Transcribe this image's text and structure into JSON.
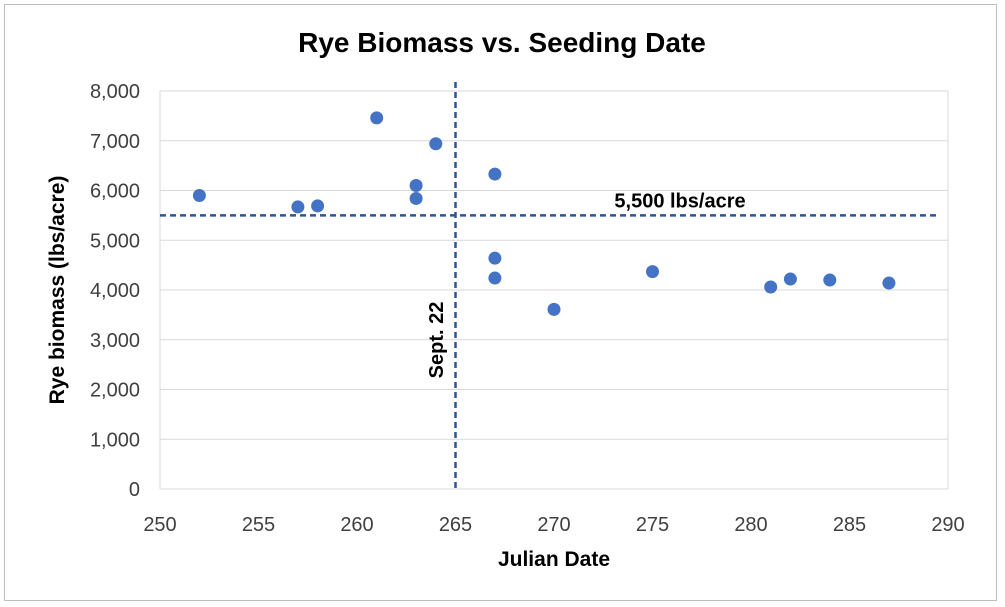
{
  "chart_data": {
    "type": "scatter",
    "title": "Rye Biomass vs. Seeding Date",
    "xlabel": "Julian Date",
    "ylabel": "Rye biomass (lbs/acre)",
    "xlim": [
      250,
      290
    ],
    "ylim": [
      0,
      8000
    ],
    "x_ticks": [
      250,
      255,
      260,
      265,
      270,
      275,
      280,
      285,
      290
    ],
    "x_tick_labels": [
      "250",
      "255",
      "260",
      "265",
      "270",
      "275",
      "280",
      "285",
      "290"
    ],
    "y_ticks": [
      0,
      1000,
      2000,
      3000,
      4000,
      5000,
      6000,
      7000,
      8000
    ],
    "y_tick_labels": [
      "0",
      "1,000",
      "2,000",
      "3,000",
      "4,000",
      "5,000",
      "6,000",
      "7,000",
      "8,000"
    ],
    "grid": "horizontal",
    "legend": "none",
    "marker_color": "#4472C4",
    "reference_line_color": "#2F5597",
    "series": [
      {
        "points": [
          {
            "x": 252,
            "y": 5900
          },
          {
            "x": 257,
            "y": 5670
          },
          {
            "x": 258,
            "y": 5690
          },
          {
            "x": 261,
            "y": 7460
          },
          {
            "x": 263,
            "y": 6100
          },
          {
            "x": 263,
            "y": 5840
          },
          {
            "x": 264,
            "y": 6940
          },
          {
            "x": 267,
            "y": 6330
          },
          {
            "x": 267,
            "y": 4640
          },
          {
            "x": 267,
            "y": 4240
          },
          {
            "x": 270,
            "y": 3610
          },
          {
            "x": 275,
            "y": 4370
          },
          {
            "x": 281,
            "y": 4060
          },
          {
            "x": 282,
            "y": 4220
          },
          {
            "x": 284,
            "y": 4200
          },
          {
            "x": 287,
            "y": 4140
          }
        ]
      }
    ],
    "reference_lines": [
      {
        "orientation": "horizontal",
        "value": 5500,
        "label": "5,500 lbs/acre"
      },
      {
        "orientation": "vertical",
        "value": 265,
        "label": "Sept. 22"
      }
    ]
  }
}
